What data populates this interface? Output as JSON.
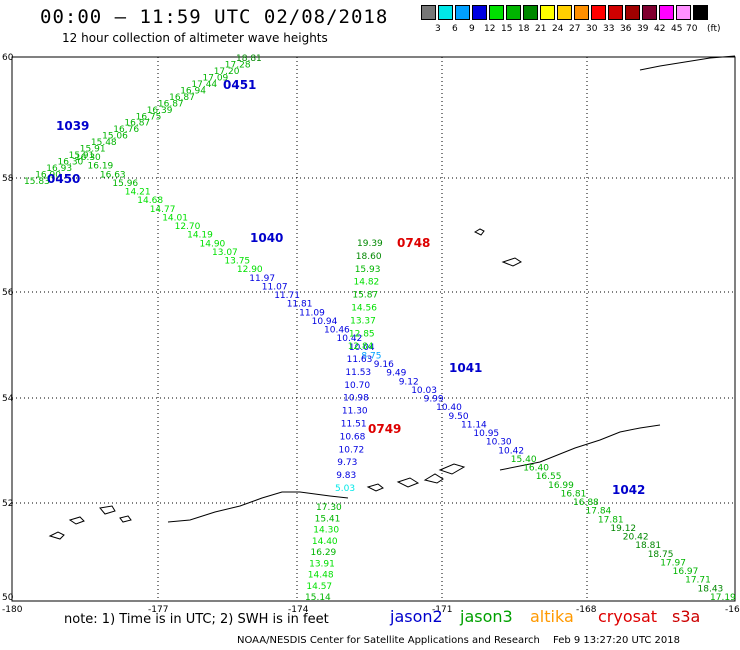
{
  "header": {
    "title": "00:00 – 11:59 UTC 02/08/2018",
    "subtitle": "12 hour collection of altimeter wave heights"
  },
  "scale": {
    "unit": "(ft)",
    "bins": [
      {
        "label": "",
        "color": "#777777"
      },
      {
        "label": "3",
        "color": "#00e8e8"
      },
      {
        "label": "6",
        "color": "#00a0ff"
      },
      {
        "label": "9",
        "color": "#0000e0"
      },
      {
        "label": "12",
        "color": "#00e000"
      },
      {
        "label": "15",
        "color": "#00b400"
      },
      {
        "label": "18",
        "color": "#008800"
      },
      {
        "label": "21",
        "color": "#ffff00"
      },
      {
        "label": "24",
        "color": "#ffd000"
      },
      {
        "label": "27",
        "color": "#ff9000"
      },
      {
        "label": "30",
        "color": "#ff0000"
      },
      {
        "label": "33",
        "color": "#d00000"
      },
      {
        "label": "36",
        "color": "#a00000"
      },
      {
        "label": "39",
        "color": "#800030"
      },
      {
        "label": "42",
        "color": "#ff00ff"
      },
      {
        "label": "45",
        "color": "#ff90ff"
      },
      {
        "label": "70",
        "color": "#000000"
      }
    ]
  },
  "map": {
    "lon_ticks": [
      "-180",
      "-177",
      "-174",
      "-171",
      "-168",
      "-16"
    ],
    "lat_ticks": [
      "60",
      "58",
      "56",
      "54",
      "52",
      "50"
    ],
    "passes": [
      {
        "id": "0451",
        "sat": "jason2"
      },
      {
        "id": "1039",
        "sat": "jason2"
      },
      {
        "id": "0450",
        "sat": "jason2"
      },
      {
        "id": "1040",
        "sat": "jason2"
      },
      {
        "id": "0748",
        "sat": "cryosat"
      },
      {
        "id": "1041",
        "sat": "jason2"
      },
      {
        "id": "0749",
        "sat": "cryosat"
      },
      {
        "id": "1042",
        "sat": "jason2"
      }
    ],
    "tracks": [
      {
        "name": "track-0451",
        "values": [
          "18.81",
          "17.28",
          "17.20",
          "17.09",
          "17.44",
          "16.94",
          "16.87",
          "16.87",
          "16.39",
          "16.75",
          "16.87",
          "16.76",
          "15.06",
          "15.48",
          "15.91",
          "15.91",
          "16.30",
          "16.93",
          "16.90",
          "15.83"
        ]
      },
      {
        "name": "track-1040",
        "values": [
          "16.30",
          "16.19",
          "16.63",
          "15.96",
          "14.21",
          "14.68",
          "14.77",
          "14.01",
          "12.70",
          "14.19",
          "14.90",
          "13.07",
          "13.75",
          "12.90",
          "11.97",
          "11.07",
          "11.71",
          "11.81",
          "11.09",
          "10.94",
          "10.46",
          "10.42",
          "10.04",
          "8.75",
          "9.16",
          "9.49",
          "9.12",
          "10.03",
          "9.99",
          "10.40",
          "9.50",
          "11.14",
          "10.95",
          "10.30",
          "10.42",
          "15.40",
          "16.40",
          "16.55",
          "16.99",
          "16.81",
          "16.88",
          "17.84",
          "17.81",
          "19.12",
          "20.42",
          "18.81",
          "18.75",
          "17.97",
          "16.97",
          "17.71",
          "18.43",
          "17.19"
        ]
      },
      {
        "name": "track-0748",
        "values": [
          "19.39",
          "18.60",
          "15.93",
          "14.82",
          "15.87",
          "14.56",
          "13.37",
          "12.85",
          "12.84",
          "11.63",
          "11.53",
          "10.70",
          "10.98",
          "11.30",
          "11.51",
          "10.68",
          "10.72",
          "9.73",
          "9.83",
          "5.03"
        ]
      },
      {
        "name": "track-0749",
        "values": [
          "17.30",
          "15.41",
          "14.30",
          "14.40",
          "16.29",
          "13.91",
          "14.48",
          "14.57",
          "15.14"
        ]
      }
    ]
  },
  "note": "note: 1) Time is in UTC; 2) SWH is in feet",
  "legend": [
    {
      "label": "jason2",
      "color": "#0000cc"
    },
    {
      "label": "jason3",
      "color": "#00a000"
    },
    {
      "label": "altika",
      "color": "#ff9900"
    },
    {
      "label": "cryosat",
      "color": "#dd0000"
    },
    {
      "label": "s3a",
      "color": "#cc0000"
    }
  ],
  "footer": {
    "left": "NOAA/NESDIS Center for Satellite Applications and Research",
    "right": "Feb  9 13:27:20 UTC 2018"
  }
}
